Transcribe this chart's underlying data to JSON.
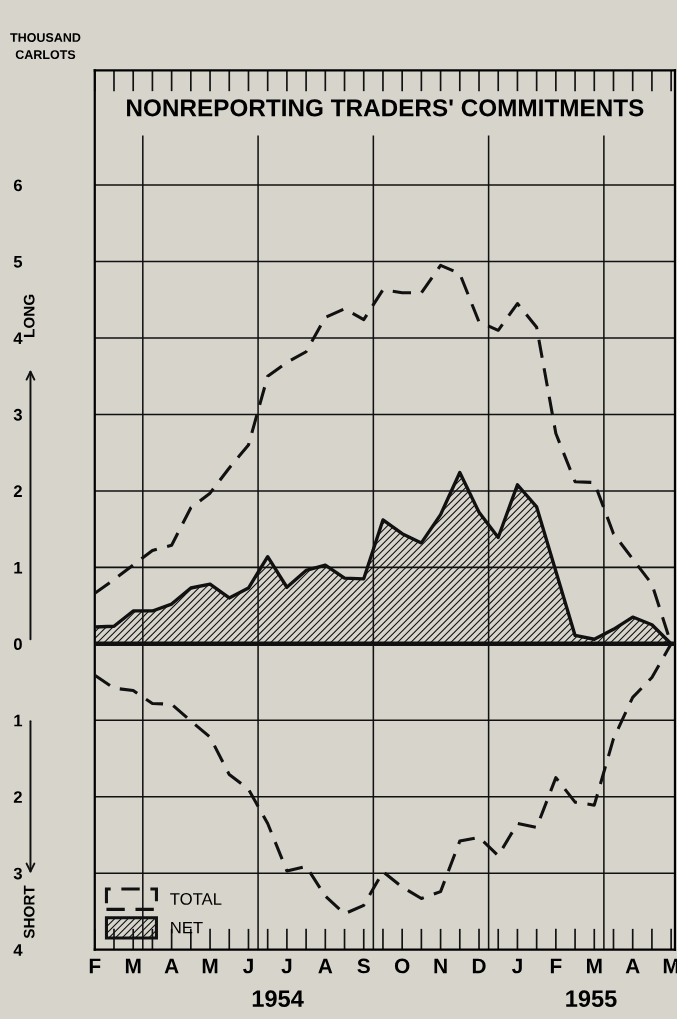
{
  "chart_data": {
    "type": "line",
    "title": "NONREPORTING TRADERS' COMMITMENTS",
    "ylabel": "THOUSAND\nCARLOTS",
    "annotations": [
      "LONG",
      "SHORT",
      "1954",
      "1955"
    ],
    "categories": [
      "F",
      null,
      "M",
      null,
      "A",
      null,
      "M",
      null,
      "J",
      null,
      "J",
      null,
      "A",
      null,
      "S",
      null,
      "O",
      null,
      "N",
      null,
      "D",
      null,
      "J",
      null,
      "F",
      null,
      "M",
      null,
      "A",
      null,
      "M"
    ],
    "series": [
      {
        "name": "TOTAL",
        "color": "#111111",
        "line_style": "dashed",
        "values": [
          0.66,
          0.84,
          1.03,
          1.22,
          1.29,
          1.78,
          1.97,
          2.3,
          2.6,
          3.5,
          3.68,
          3.82,
          4.27,
          4.38,
          4.24,
          4.63,
          4.59,
          4.59,
          4.95,
          4.84,
          4.21,
          4.1,
          4.45,
          4.14,
          2.75,
          2.12,
          2.11,
          1.44,
          1.11,
          0.78,
          0
        ]
      },
      {
        "color": "#111111",
        "line_style": "dashed",
        "values": [
          -0.41,
          -0.58,
          -0.61,
          -0.78,
          -0.79,
          -1.01,
          -1.22,
          -1.71,
          -1.9,
          -2.35,
          -2.97,
          -2.91,
          -3.3,
          -3.53,
          -3.42,
          -2.98,
          -3.18,
          -3.33,
          -3.24,
          -2.58,
          -2.53,
          -2.77,
          -2.35,
          -2.4,
          -1.75,
          -2.07,
          -2.11,
          -1.24,
          -0.7,
          -0.44,
          0
        ]
      },
      {
        "name": "NET",
        "type": "area",
        "color": "#111111",
        "values": [
          0.22,
          0.23,
          0.43,
          0.43,
          0.52,
          0.73,
          0.78,
          0.6,
          0.73,
          1.14,
          0.74,
          0.96,
          1.03,
          0.86,
          0.85,
          1.62,
          1.44,
          1.32,
          1.69,
          2.24,
          1.72,
          1.39,
          2.08,
          1.79,
          0.95,
          0.11,
          0.06,
          0.19,
          0.35,
          0.25,
          0
        ]
      }
    ],
    "ylim": [
      -4,
      7.5
    ],
    "yticks": [
      {
        "value": -4,
        "label": "4"
      },
      {
        "value": -3,
        "label": "3"
      },
      {
        "value": -2,
        "label": "2"
      },
      {
        "value": -1,
        "label": "1"
      },
      0,
      1,
      2,
      3,
      4,
      5,
      6
    ],
    "ref_lines": [
      {
        "axis": "y",
        "value": 0,
        "color": "#111111"
      }
    ],
    "grid": "y",
    "legend": "bottom left"
  }
}
